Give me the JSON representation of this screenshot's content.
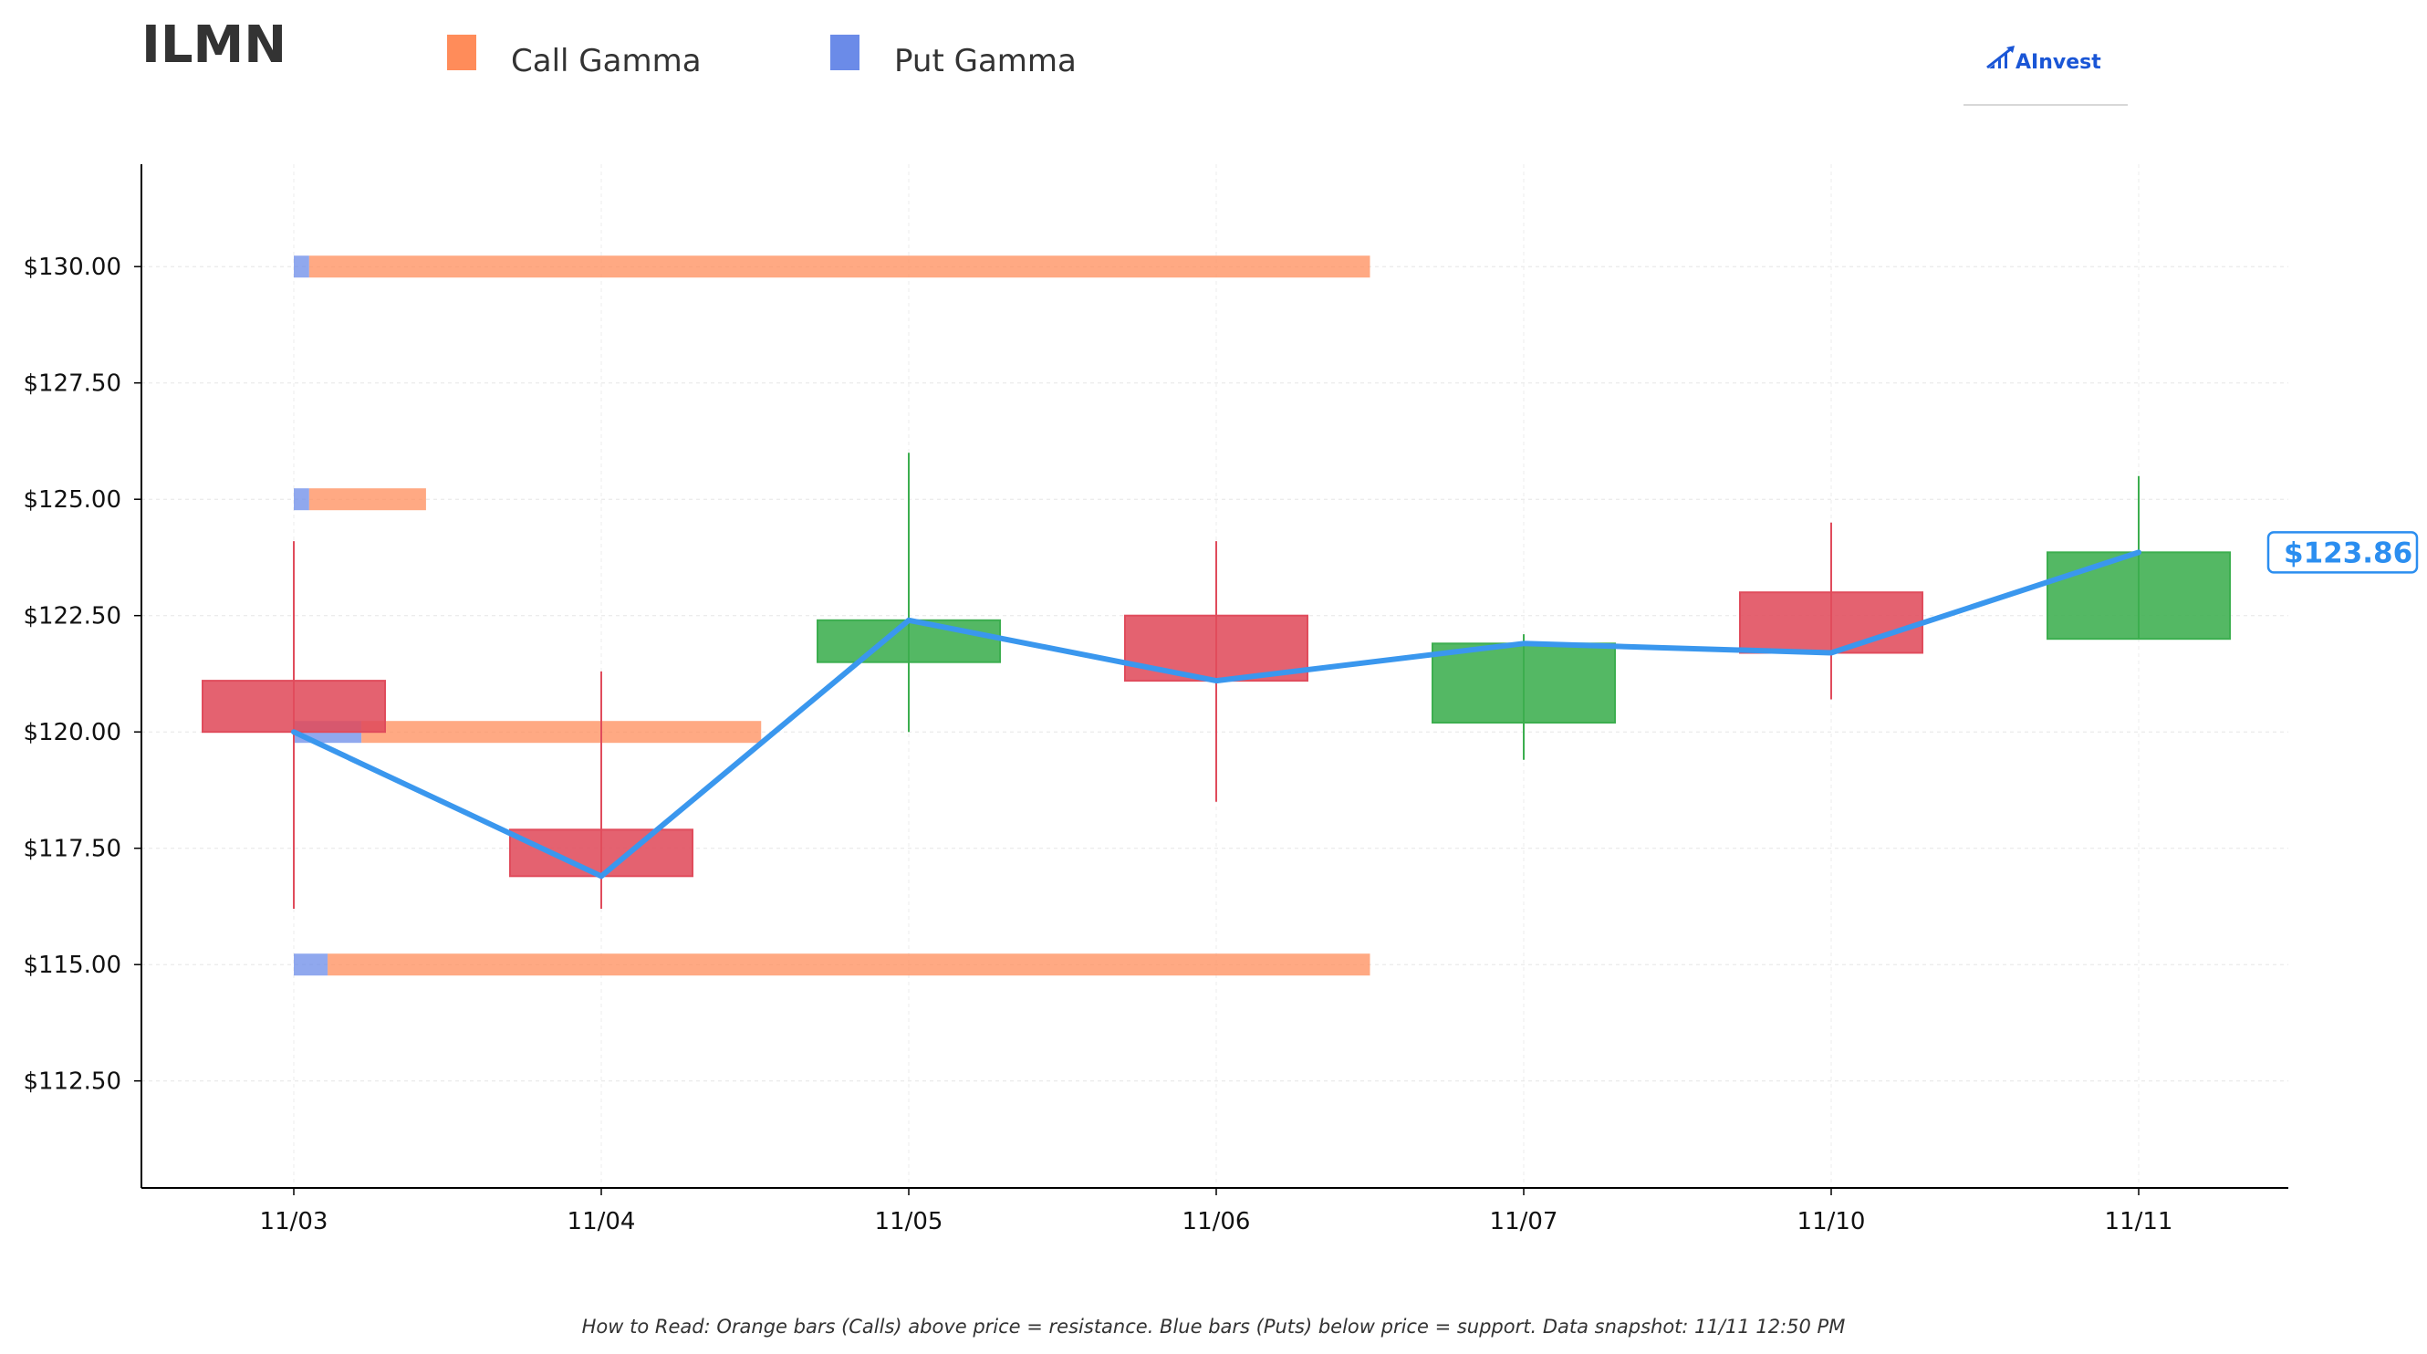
{
  "title": "ILMN",
  "legend": {
    "call": {
      "label": "Call Gamma",
      "color": "#ff8c5a"
    },
    "put": {
      "label": "Put Gamma",
      "color": "#6b8be8"
    }
  },
  "logo": {
    "text": "AInvest",
    "icon": "chart-arrow-icon"
  },
  "footnote": "How to Read: Orange bars (Calls) above price = resistance. Blue bars (Puts) below price = support. Data snapshot: 11/11 12:50 PM",
  "chart_data": {
    "type": "candlestick",
    "categories": [
      "11/03",
      "11/04",
      "11/05",
      "11/06",
      "11/07",
      "11/10",
      "11/11"
    ],
    "yticks": [
      112.5,
      115,
      117.5,
      120,
      122.5,
      125,
      127.5,
      130
    ],
    "ytick_labels": [
      "$112.50",
      "$115.00",
      "$117.50",
      "$120.00",
      "$122.50",
      "$125.00",
      "$127.50",
      "$130.00"
    ],
    "ylim": [
      110.2,
      132.2
    ],
    "grid": true,
    "legend_position": "top",
    "candles": [
      {
        "date": "11/03",
        "open": 121.1,
        "high": 124.1,
        "low": 116.2,
        "close": 120.0
      },
      {
        "date": "11/04",
        "open": 117.9,
        "high": 121.3,
        "low": 116.2,
        "close": 116.9
      },
      {
        "date": "11/05",
        "open": 121.5,
        "high": 126.0,
        "low": 120.0,
        "close": 122.4
      },
      {
        "date": "11/06",
        "open": 122.5,
        "high": 124.1,
        "low": 118.5,
        "close": 121.1
      },
      {
        "date": "11/07",
        "open": 120.2,
        "high": 122.1,
        "low": 119.4,
        "close": 121.9
      },
      {
        "date": "11/10",
        "open": 123.0,
        "high": 124.5,
        "low": 120.7,
        "close": 121.7
      },
      {
        "date": "11/11",
        "open": 122.0,
        "high": 125.5,
        "low": 122.0,
        "close": 123.86
      }
    ],
    "price_line": {
      "values": [
        120.0,
        116.9,
        122.4,
        121.1,
        121.9,
        121.7,
        123.86
      ],
      "color": "#3a97ee"
    },
    "last_price": {
      "value": 123.86,
      "label": "$123.86"
    },
    "gamma_levels": [
      {
        "strike": 130.0,
        "put": 0.05,
        "call": 3.45
      },
      {
        "strike": 125.0,
        "put": 0.05,
        "call": 0.38
      },
      {
        "strike": 120.0,
        "put": 0.22,
        "call": 1.3
      },
      {
        "strike": 115.0,
        "put": 0.11,
        "call": 3.39
      }
    ],
    "colors": {
      "up": "#3cae4f",
      "down": "#e04c5c"
    }
  }
}
